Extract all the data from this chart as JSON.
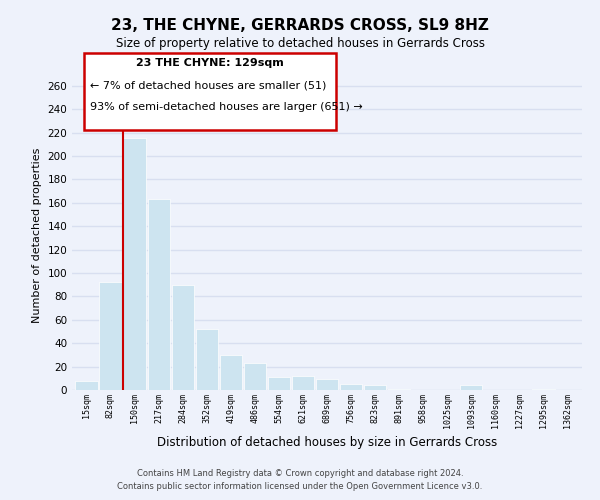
{
  "title": "23, THE CHYNE, GERRARDS CROSS, SL9 8HZ",
  "subtitle": "Size of property relative to detached houses in Gerrards Cross",
  "xlabel": "Distribution of detached houses by size in Gerrards Cross",
  "ylabel": "Number of detached properties",
  "bar_labels": [
    "15sqm",
    "82sqm",
    "150sqm",
    "217sqm",
    "284sqm",
    "352sqm",
    "419sqm",
    "486sqm",
    "554sqm",
    "621sqm",
    "689sqm",
    "756sqm",
    "823sqm",
    "891sqm",
    "958sqm",
    "1025sqm",
    "1093sqm",
    "1160sqm",
    "1227sqm",
    "1295sqm",
    "1362sqm"
  ],
  "bar_values": [
    8,
    92,
    215,
    163,
    90,
    52,
    30,
    23,
    11,
    12,
    9,
    5,
    4,
    1,
    0,
    0,
    4,
    0,
    0,
    1,
    0
  ],
  "bar_color": "#cde4f0",
  "bar_edge_color": "#ffffff",
  "highlight_bar_index": 2,
  "highlight_line_color": "#cc0000",
  "ylim": [
    0,
    265
  ],
  "yticks": [
    0,
    20,
    40,
    60,
    80,
    100,
    120,
    140,
    160,
    180,
    200,
    220,
    240,
    260
  ],
  "annotation_title": "23 THE CHYNE: 129sqm",
  "annotation_line1": "← 7% of detached houses are smaller (51)",
  "annotation_line2": "93% of semi-detached houses are larger (651) →",
  "footer1": "Contains HM Land Registry data © Crown copyright and database right 2024.",
  "footer2": "Contains public sector information licensed under the Open Government Licence v3.0.",
  "background_color": "#eef2fb",
  "grid_color": "#d8dff0"
}
